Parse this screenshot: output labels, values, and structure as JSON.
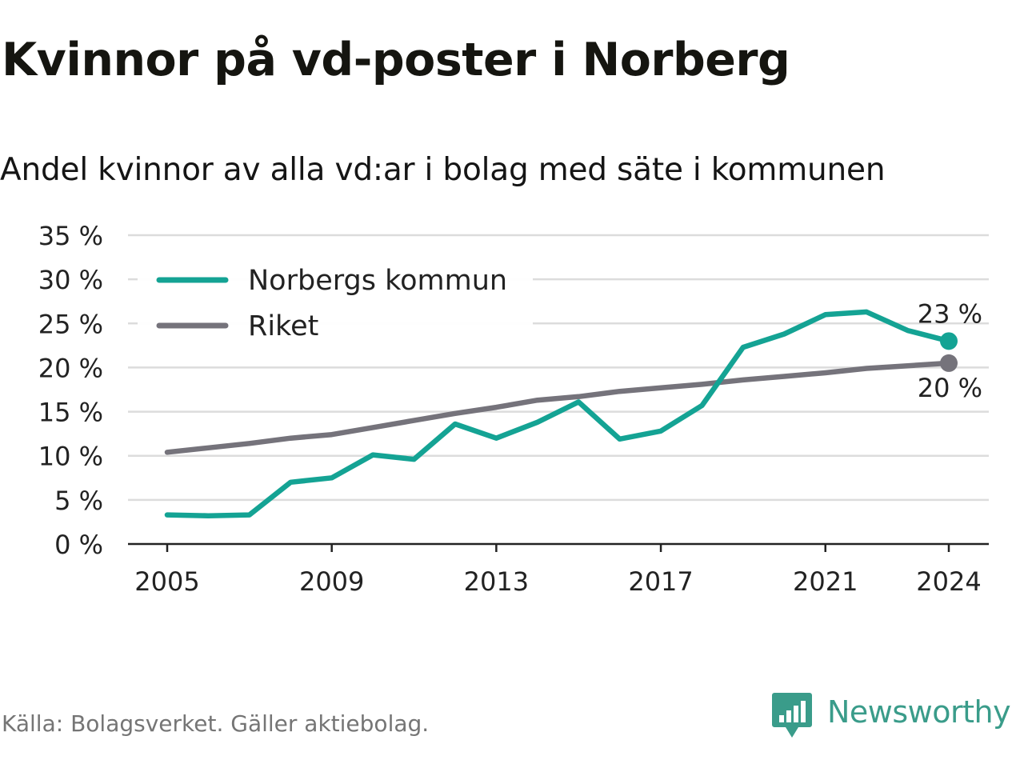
{
  "title": "Kvinnor på vd-poster i Norberg",
  "subtitle": "Andel kvinnor av alla vd:ar i bolag med säte i kommunen",
  "source": "Källa: Bolagsverket. Gäller aktiebolag.",
  "brand": "Newsworthy",
  "colors": {
    "norberg": "#14a394",
    "riket": "#75737b",
    "grid": "#dcdcdc",
    "axis": "#222222",
    "brand": "#3a9c8a"
  },
  "chart_data": {
    "type": "line",
    "xlim": [
      2005,
      2024
    ],
    "ylim": [
      0,
      35
    ],
    "x_ticks": [
      2005,
      2009,
      2013,
      2017,
      2021,
      2024
    ],
    "y_ticks": [
      0,
      5,
      10,
      15,
      20,
      25,
      30,
      35
    ],
    "y_tick_labels": [
      "0 %",
      "5 %",
      "10 %",
      "15 %",
      "20 %",
      "25 %",
      "30 %",
      "35 %"
    ],
    "grid": "horizontal",
    "legend_position": "top-left",
    "x": [
      2005,
      2006,
      2007,
      2008,
      2009,
      2010,
      2011,
      2012,
      2013,
      2014,
      2015,
      2016,
      2017,
      2018,
      2019,
      2020,
      2021,
      2022,
      2023,
      2024
    ],
    "series": [
      {
        "name": "Norbergs kommun",
        "color_key": "norberg",
        "values": [
          3.3,
          3.2,
          3.3,
          7.0,
          7.5,
          10.1,
          9.6,
          13.6,
          12.0,
          13.8,
          16.1,
          11.9,
          12.8,
          15.7,
          22.3,
          23.8,
          26.0,
          26.3,
          24.2,
          23.0
        ],
        "end_label": "23 %"
      },
      {
        "name": "Riket",
        "color_key": "riket",
        "values": [
          10.4,
          10.9,
          11.4,
          12.0,
          12.4,
          13.2,
          14.0,
          14.8,
          15.5,
          16.3,
          16.7,
          17.3,
          17.7,
          18.1,
          18.6,
          19.0,
          19.4,
          19.9,
          20.2,
          20.5
        ],
        "end_label": "20 %"
      }
    ]
  }
}
